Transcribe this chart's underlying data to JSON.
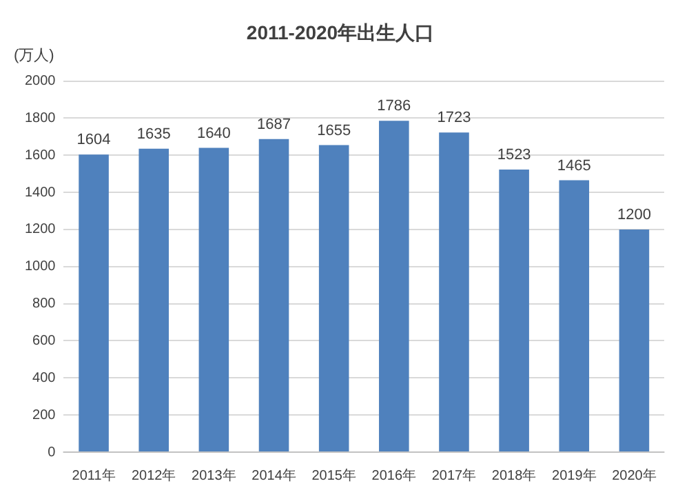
{
  "chart_data": {
    "type": "bar",
    "title": "2011-2020年出生人口",
    "ylabel": "(万人)",
    "categories": [
      "2011年",
      "2012年",
      "2013年",
      "2014年",
      "2015年",
      "2016年",
      "2017年",
      "2018年",
      "2019年",
      "2020年"
    ],
    "values": [
      1604,
      1635,
      1640,
      1687,
      1655,
      1786,
      1723,
      1523,
      1465,
      1200
    ],
    "color": "#4f81bd",
    "ylim": [
      0,
      2000
    ],
    "yticks": [
      0,
      200,
      400,
      600,
      800,
      1000,
      1200,
      1400,
      1600,
      1800,
      2000
    ],
    "grid": "y",
    "data_labels": true,
    "legend": false
  }
}
